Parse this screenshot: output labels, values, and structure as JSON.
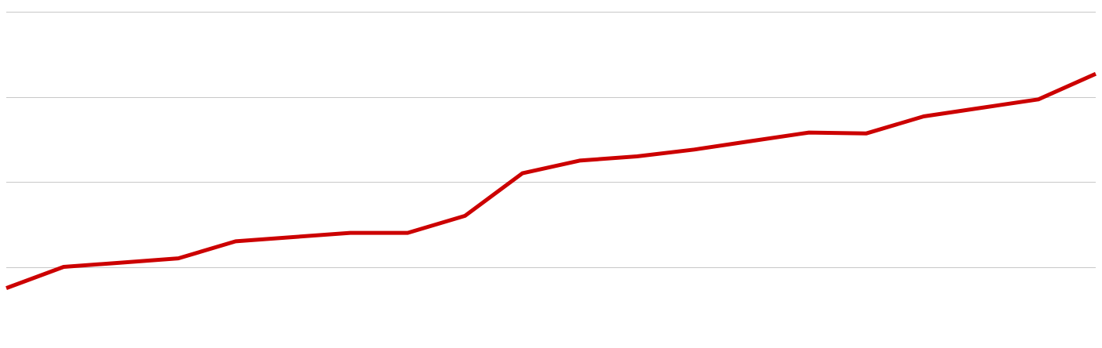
{
  "chart_data": {
    "type": "line",
    "title": "",
    "xlabel": "",
    "ylabel": "",
    "grid": true,
    "legend": "none",
    "ylim": [
      0,
      4
    ],
    "gridlines_y": [
      1,
      2,
      3,
      4
    ],
    "x": [
      0,
      1,
      2,
      3,
      4,
      5,
      6,
      7,
      8,
      9,
      10,
      11,
      12,
      13,
      14,
      15,
      16,
      17,
      18,
      19
    ],
    "series": [
      {
        "values": [
          0.75,
          1.0,
          1.05,
          1.1,
          1.3,
          1.35,
          1.4,
          1.4,
          1.6,
          2.1,
          2.25,
          2.3,
          2.38,
          2.48,
          2.58,
          2.57,
          2.77,
          2.87,
          2.97,
          3.27
        ],
        "color": "#cc0000"
      }
    ],
    "colors": {
      "grid": "#c8c8c8",
      "line": "#cc0000",
      "background": "#ffffff"
    }
  }
}
